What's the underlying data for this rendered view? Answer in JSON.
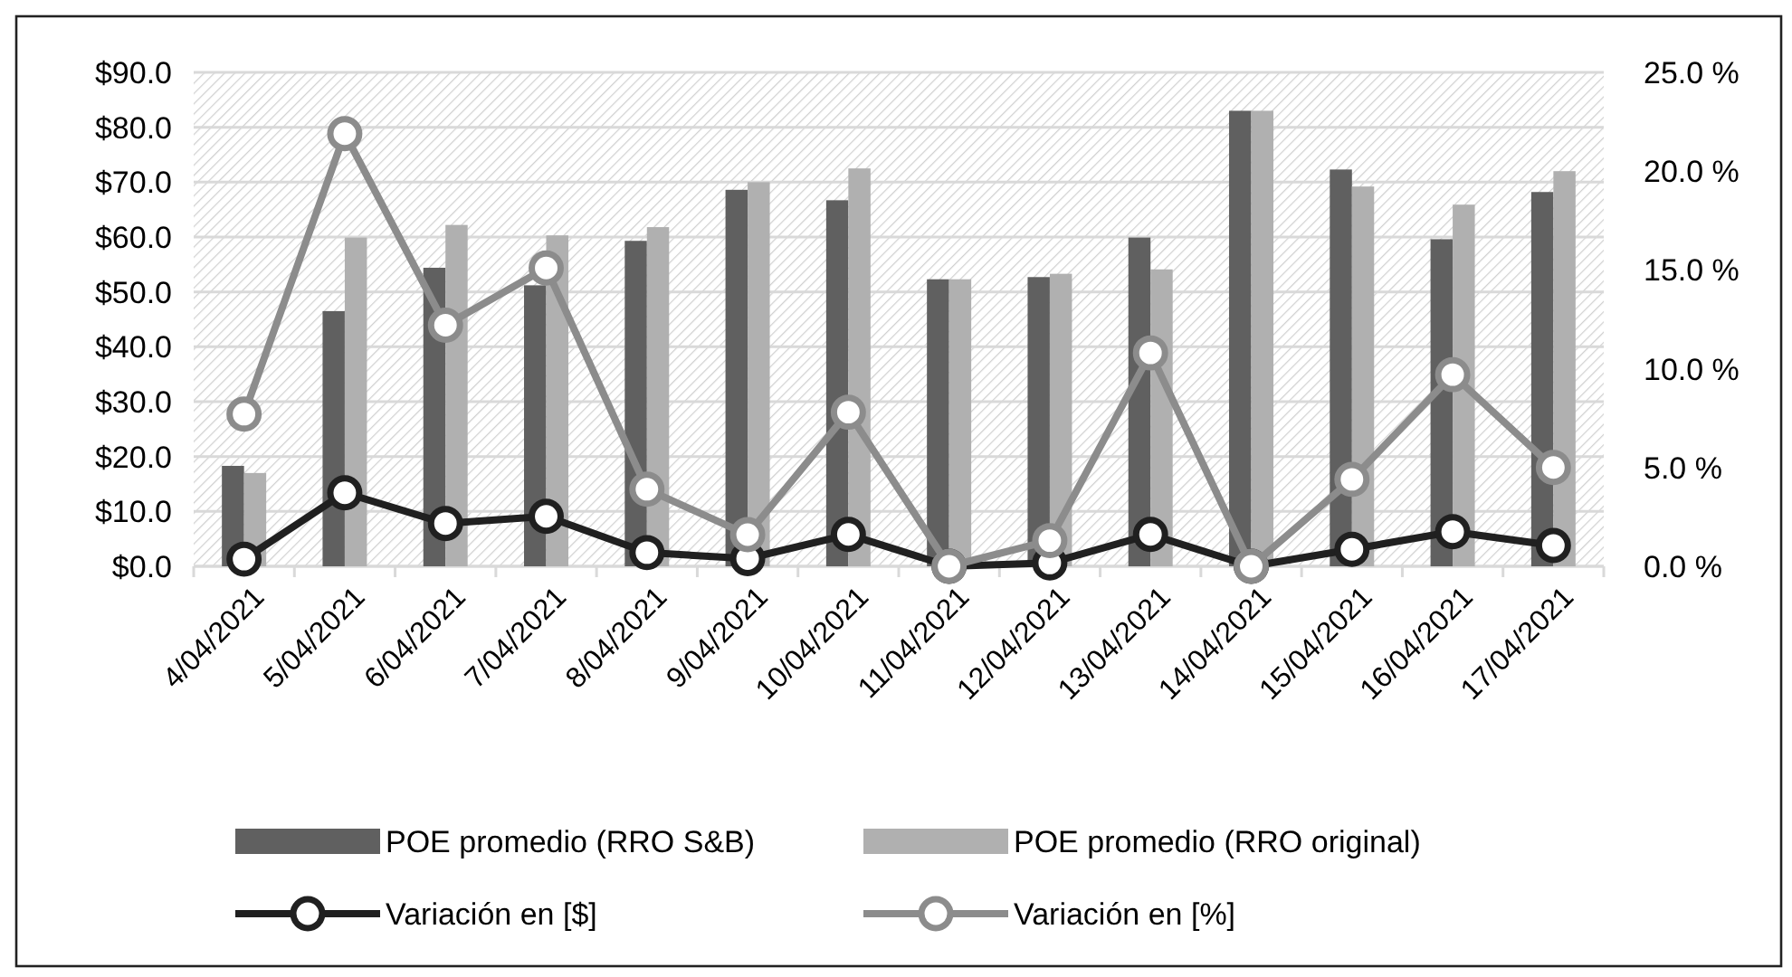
{
  "chart_data": {
    "type": "bar",
    "categories": [
      "4/04/2021",
      "5/04/2021",
      "6/04/2021",
      "7/04/2021",
      "8/04/2021",
      "9/04/2021",
      "10/04/2021",
      "11/04/2021",
      "12/04/2021",
      "13/04/2021",
      "14/04/2021",
      "15/04/2021",
      "16/04/2021",
      "17/04/2021"
    ],
    "series": [
      {
        "name": "POE promedio (RRO S&B)",
        "color": "#606060",
        "values": [
          18.3,
          46.5,
          54.4,
          51.2,
          59.3,
          68.6,
          66.7,
          52.3,
          52.7,
          59.9,
          83.0,
          72.3,
          59.6,
          68.2
        ]
      },
      {
        "name": "POE promedio (RRO original)",
        "color": "#b0b0b0",
        "values": [
          17.0,
          59.9,
          62.2,
          60.3,
          61.8,
          70.0,
          72.5,
          52.3,
          53.3,
          54.1,
          83.0,
          69.2,
          65.9,
          72.0
        ]
      },
      {
        "name": "Variación en [$]",
        "type": "line",
        "color": "#202020",
        "values": [
          1.3,
          13.4,
          7.8,
          9.1,
          2.5,
          1.4,
          5.8,
          0.0,
          0.6,
          5.8,
          0.0,
          3.1,
          6.3,
          3.8
        ]
      },
      {
        "name": "Variación en [%]",
        "type": "line",
        "axis": "y2",
        "color": "#8c8c8c",
        "values": [
          7.7,
          21.9,
          12.2,
          15.1,
          3.9,
          1.6,
          7.8,
          0.0,
          1.3,
          10.8,
          0.0,
          4.4,
          9.7,
          5.0
        ]
      }
    ],
    "ylim": [
      0,
      90
    ],
    "yticks": [
      {
        "value": 0,
        "label": "$0.0"
      },
      {
        "value": 10,
        "label": "$10.0"
      },
      {
        "value": 20,
        "label": "$20.0"
      },
      {
        "value": 30,
        "label": "$30.0"
      },
      {
        "value": 40,
        "label": "$40.0"
      },
      {
        "value": 50,
        "label": "$50.0"
      },
      {
        "value": 60,
        "label": "$60.0"
      },
      {
        "value": 70,
        "label": "$70.0"
      },
      {
        "value": 80,
        "label": "$80.0"
      },
      {
        "value": 90,
        "label": "$90.0"
      }
    ],
    "y2lim": [
      0,
      25
    ],
    "y2ticks": [
      {
        "value": 0,
        "label": "0.0 %"
      },
      {
        "value": 5,
        "label": "5.0 %"
      },
      {
        "value": 10,
        "label": "10.0 %"
      },
      {
        "value": 15,
        "label": "15.0 %"
      },
      {
        "value": 20,
        "label": "20.0 %"
      },
      {
        "value": 25,
        "label": "25.0 %"
      }
    ],
    "grid": "y",
    "legend": "bottom",
    "marker": "circle",
    "line_style": "solid"
  }
}
